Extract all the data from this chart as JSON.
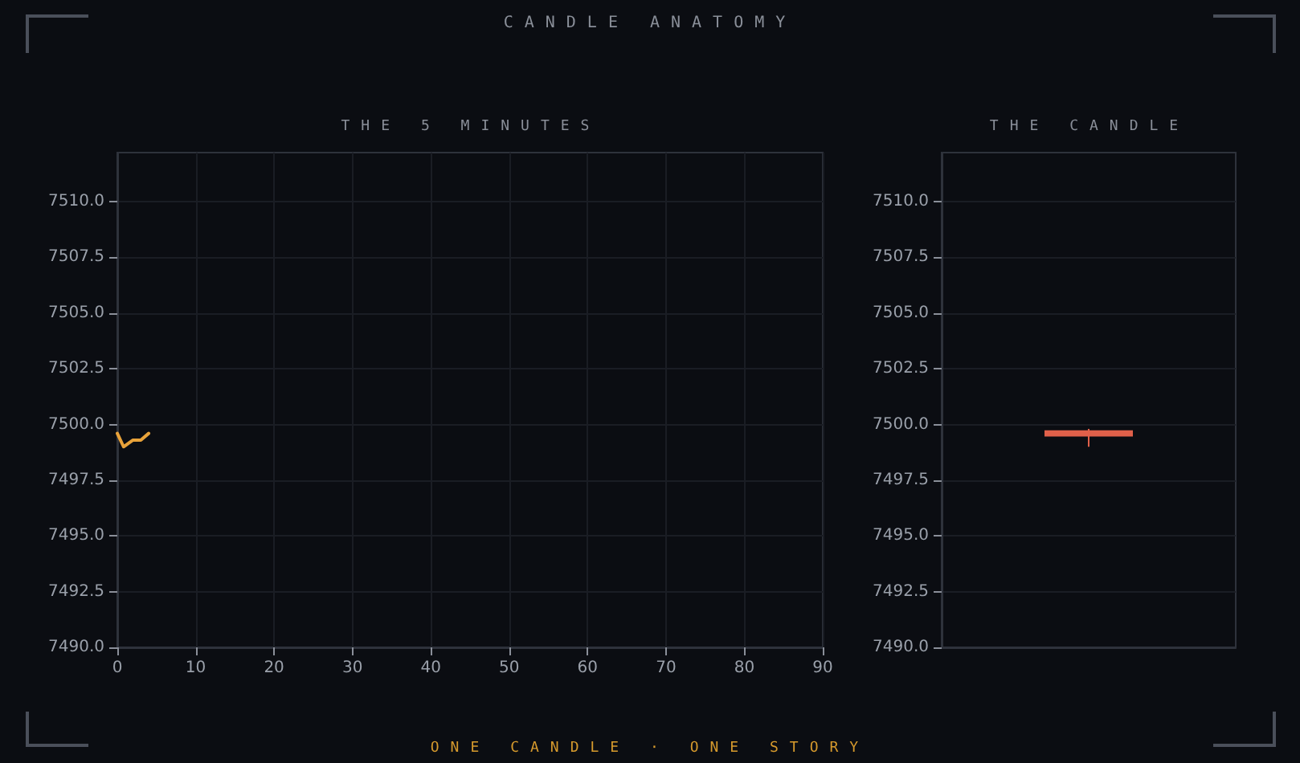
{
  "chart_data": [
    {
      "type": "line",
      "title": "THE 5 MINUTES",
      "annotations": [
        "CANDLE ANATOMY",
        "ONE CANDLE · ONE STORY"
      ],
      "x": [
        0,
        0.8,
        2,
        3,
        4
      ],
      "series": [
        {
          "color": "#e8a23a",
          "values": [
            7499.6,
            7499.0,
            7499.3,
            7499.3,
            7499.6
          ]
        }
      ],
      "xlim": [
        0,
        90
      ],
      "xticks": [
        0,
        10,
        20,
        30,
        40,
        50,
        60,
        70,
        80,
        90
      ],
      "ylim": [
        7490,
        7512.2
      ],
      "yticks": [
        {
          "value": 7490,
          "label": "7490.0"
        },
        7492.5,
        {
          "value": 7495,
          "label": "7495.0"
        },
        7497.5,
        {
          "value": 7500,
          "label": "7500.0"
        },
        7502.5,
        {
          "value": 7505,
          "label": "7505.0"
        },
        7507.5,
        {
          "value": 7510,
          "label": "7510.0"
        }
      ],
      "grid": true,
      "marker": "none",
      "line_style": "solid"
    },
    {
      "type": "candlestick",
      "title": "THE CANDLE",
      "categories": [
        null
      ],
      "ohlc": [
        [
          7499.7,
          7499.8,
          7499.0,
          7499.5
        ]
      ],
      "color": "#e0604a",
      "ylim": [
        7490,
        7512.2
      ],
      "yticks": [
        {
          "value": 7490,
          "label": "7490.0"
        },
        7492.5,
        {
          "value": 7495,
          "label": "7495.0"
        },
        7497.5,
        {
          "value": 7500,
          "label": "7500.0"
        },
        7502.5,
        {
          "value": 7505,
          "label": "7505.0"
        },
        7507.5,
        {
          "value": 7510,
          "label": "7510.0"
        }
      ],
      "grid": "y",
      "tick_labels": "y"
    }
  ]
}
